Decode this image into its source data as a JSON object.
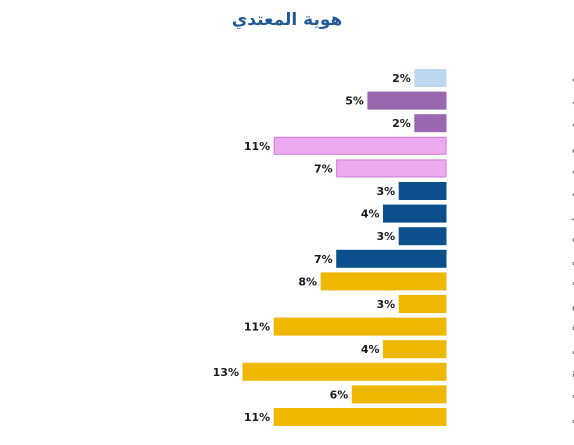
{
  "chart_data": {
    "type": "bar",
    "orientation": "horizontal",
    "title": "هوية المعتدي",
    "xlabel": "",
    "ylabel": "",
    "xlim": [
      0,
      0.14
    ],
    "value_format": "percent",
    "grid": false,
    "legend": "none",
    "categories": [
      "غريب",
      "معرفة سطحية",
      "معرفة عن طريق الانترنت",
      "مرشد\\ معالج\\ معلم",
      "صاحب سلطة\\ مشغل",
      "زميل",
      "جار",
      "أحد معارف الوالدين",
      "صديق",
      "احد افراد العائلة\\ قريب",
      "زوج الام",
      "ابن عم\\ة - ابن خال\\ة",
      "عم\\ خال",
      "اخ",
      "اب",
      "زوج حالي\\ سابق"
    ],
    "values": [
      0.02,
      0.05,
      0.02,
      0.11,
      0.07,
      0.03,
      0.04,
      0.03,
      0.07,
      0.08,
      0.03,
      0.11,
      0.04,
      0.13,
      0.06,
      0.11
    ],
    "value_labels": [
      "2%",
      "5%",
      "2%",
      "11%",
      "7%",
      "3%",
      "4%",
      "3%",
      "7%",
      "8%",
      "3%",
      "11%",
      "4%",
      "13%",
      "6%",
      "11%"
    ],
    "bar_colors": [
      "#bdd7ee",
      "#9966b0",
      "#9966b0",
      "#eeaaf0",
      "#eeaaf0",
      "#0b4f8c",
      "#0b4f8c",
      "#0b4f8c",
      "#0b4f8c",
      "#eeb700",
      "#eeb700",
      "#eeb700",
      "#eeb700",
      "#eeb700",
      "#eeb700",
      "#eeb700"
    ],
    "bar_stroke_colors": [
      "#bdd7ee",
      "#9966b0",
      "#9966b0",
      "#c77ad0",
      "#c77ad0",
      "#0b4f8c",
      "#0b4f8c",
      "#0b4f8c",
      "#0b4f8c",
      "#eeb700",
      "#eeb700",
      "#eeb700",
      "#eeb700",
      "#eeb700",
      "#eeb700",
      "#eeb700"
    ]
  },
  "colors": {
    "title": "#1f5a94",
    "label_text": "#555555",
    "value_text": "#1a1a1a"
  }
}
